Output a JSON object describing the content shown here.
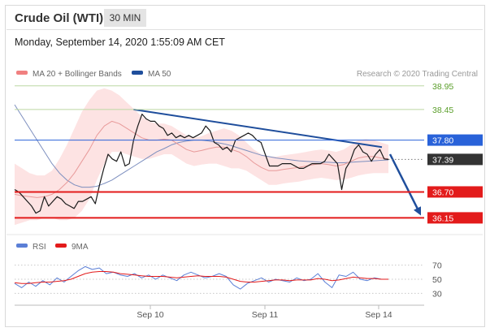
{
  "header": {
    "title": "Crude Oil (WTI)",
    "timeframe": "30 MIN",
    "datetime": "Monday, September 14, 2020 1:55:09 AM CET"
  },
  "legend": {
    "items": [
      {
        "label": "MA 20 + Bollinger Bands",
        "color": "#f08080"
      },
      {
        "label": "MA 50",
        "color": "#1f4e9c"
      }
    ],
    "credit": "Research © 2020 Trading Central"
  },
  "chart_data": [
    {
      "type": "line",
      "title": "",
      "xlabel": "",
      "ylabel": "",
      "x_ticks": [
        "Sep 10",
        "Sep 11",
        "Sep 14"
      ],
      "ylim": [
        35.95,
        39.05
      ],
      "levels": [
        {
          "value": "38.95",
          "color": "#5a9e2a",
          "kind": "resistance"
        },
        {
          "value": "38.45",
          "color": "#5a9e2a",
          "kind": "resistance"
        },
        {
          "value": "37.80",
          "color": "#2962d9",
          "kind": "pivot"
        },
        {
          "value": "37.39",
          "color": "#333333",
          "kind": "last-price"
        },
        {
          "value": "36.70",
          "color": "#e31b1b",
          "kind": "support"
        },
        {
          "value": "36.15",
          "color": "#e31b1b",
          "kind": "support"
        }
      ],
      "series": [
        {
          "name": "MA 20 + Bollinger Bands",
          "color": "#f08080",
          "values": [
            36.65,
            36.62,
            36.6,
            36.58,
            36.6,
            36.65,
            36.75,
            36.9,
            37.1,
            37.35,
            37.6,
            37.9,
            38.1,
            38.2,
            38.15,
            38.05,
            37.95,
            37.85,
            37.8,
            37.8,
            37.82,
            37.8,
            37.7,
            37.6,
            37.55,
            37.58,
            37.62,
            37.65,
            37.65,
            37.6,
            37.55,
            37.45,
            37.32,
            37.22,
            37.15,
            37.15,
            37.18,
            37.2,
            37.22,
            37.25,
            37.28,
            37.3,
            37.28,
            37.25,
            37.28,
            37.35,
            37.42,
            37.45,
            37.45,
            37.42,
            37.4
          ]
        },
        {
          "name": "MA 50",
          "color": "#1f4e9c",
          "values": [
            38.55,
            38.3,
            38.05,
            37.8,
            37.55,
            37.3,
            37.1,
            36.95,
            36.85,
            36.8,
            36.8,
            36.82,
            36.88,
            36.95,
            37.05,
            37.15,
            37.25,
            37.35,
            37.45,
            37.55,
            37.62,
            37.7,
            37.75,
            37.78,
            37.8,
            37.8,
            37.78,
            37.75,
            37.72,
            37.68,
            37.63,
            37.58,
            37.53,
            37.48,
            37.45,
            37.42,
            37.4,
            37.38,
            37.36,
            37.35,
            37.34,
            37.33,
            37.33,
            37.32,
            37.32,
            37.33,
            37.34,
            37.35,
            37.36,
            37.37,
            37.38
          ]
        },
        {
          "name": "Bollinger Upper",
          "color": "#fbd6d6",
          "values": [
            37.3,
            37.2,
            37.1,
            37.05,
            37.05,
            37.15,
            37.4,
            37.7,
            38.05,
            38.4,
            38.65,
            38.85,
            38.9,
            38.85,
            38.75,
            38.6,
            38.45,
            38.3,
            38.2,
            38.15,
            38.15,
            38.1,
            38.0,
            37.9,
            37.85,
            37.88,
            37.95,
            38.0,
            38.05,
            38.0,
            37.9,
            37.75,
            37.6,
            37.5,
            37.45,
            37.45,
            37.48,
            37.5,
            37.52,
            37.55,
            37.58,
            37.6,
            37.58,
            37.55,
            37.6,
            37.7,
            37.8,
            37.82,
            37.8,
            37.75,
            37.7
          ]
        },
        {
          "name": "Bollinger Lower",
          "color": "#fbd6d6",
          "values": [
            36.0,
            36.05,
            36.1,
            36.1,
            36.15,
            36.15,
            36.1,
            36.1,
            36.15,
            36.3,
            36.55,
            36.95,
            37.3,
            37.55,
            37.55,
            37.5,
            37.45,
            37.4,
            37.4,
            37.45,
            37.5,
            37.5,
            37.4,
            37.3,
            37.25,
            37.28,
            37.3,
            37.3,
            37.25,
            37.2,
            37.2,
            37.15,
            37.05,
            36.95,
            36.85,
            36.85,
            36.88,
            36.9,
            36.92,
            36.95,
            36.98,
            37.0,
            36.98,
            36.95,
            36.96,
            37.0,
            37.05,
            37.08,
            37.1,
            37.1,
            37.1
          ]
        },
        {
          "name": "Price",
          "color": "#1a1a1a",
          "values": [
            36.75,
            36.7,
            36.6,
            36.5,
            36.4,
            36.25,
            36.3,
            36.6,
            36.4,
            36.5,
            36.6,
            36.55,
            36.45,
            36.4,
            36.35,
            36.5,
            36.5,
            36.55,
            36.6,
            36.45,
            36.85,
            37.2,
            37.5,
            37.4,
            37.35,
            37.55,
            37.25,
            37.3,
            37.8,
            38.1,
            38.35,
            38.25,
            38.2,
            38.2,
            38.1,
            38.05,
            37.9,
            37.95,
            37.85,
            37.9,
            37.85,
            37.9,
            37.85,
            37.9,
            37.95,
            38.1,
            38.0,
            37.75,
            37.7,
            37.6,
            37.65,
            37.55,
            37.8,
            37.85,
            37.9,
            37.95,
            37.9,
            37.8,
            37.75,
            37.5,
            37.25,
            37.25,
            37.25,
            37.3,
            37.3,
            37.3,
            37.25,
            37.2,
            37.2,
            37.25,
            37.3,
            37.3,
            37.3,
            37.35,
            37.5,
            37.4,
            37.3,
            36.75,
            37.2,
            37.35,
            37.6,
            37.7,
            37.55,
            37.5,
            37.35,
            37.5,
            37.6,
            37.4,
            37.39
          ]
        }
      ],
      "annotations": [
        {
          "type": "trendline",
          "from": {
            "x": "Sep 9",
            "y": 38.45
          },
          "to": {
            "x": "Sep 14",
            "y": 37.65
          },
          "color": "#1f4e9c"
        },
        {
          "type": "arrow",
          "from": {
            "x": "Sep 14",
            "y": 37.5
          },
          "to": {
            "x": "Sep 14",
            "y": 36.2
          },
          "color": "#1f4e9c"
        }
      ]
    },
    {
      "type": "line",
      "title": "",
      "legend": [
        {
          "label": "RSI",
          "color": "#5b7fd6"
        },
        {
          "label": "9MA",
          "color": "#e31b1b"
        }
      ],
      "y_ticks": [
        "70",
        "50",
        "30"
      ],
      "ylim": [
        20,
        80
      ],
      "series": [
        {
          "name": "RSI",
          "color": "#5b7fd6",
          "values": [
            44,
            38,
            46,
            40,
            48,
            42,
            52,
            46,
            54,
            62,
            68,
            64,
            66,
            58,
            60,
            56,
            54,
            58,
            52,
            56,
            50,
            56,
            52,
            48,
            56,
            60,
            56,
            52,
            54,
            58,
            54,
            42,
            36,
            44,
            48,
            52,
            46,
            50,
            48,
            46,
            52,
            48,
            50,
            58,
            46,
            38,
            56,
            54,
            60,
            50,
            48,
            52,
            50,
            50
          ]
        },
        {
          "name": "9MA",
          "color": "#e31b1b",
          "values": [
            45,
            44,
            44,
            45,
            46,
            46,
            47,
            48,
            50,
            54,
            58,
            60,
            61,
            61,
            60,
            58,
            57,
            56,
            55,
            54,
            54,
            54,
            53,
            52,
            53,
            54,
            55,
            54,
            54,
            54,
            53,
            50,
            47,
            46,
            46,
            47,
            48,
            49,
            49,
            48,
            49,
            49,
            49,
            51,
            50,
            48,
            49,
            51,
            53,
            52,
            51,
            51,
            50,
            50
          ]
        }
      ]
    }
  ]
}
